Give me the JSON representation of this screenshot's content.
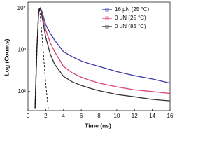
{
  "chart_data": {
    "type": "line",
    "x_label": "Time (ns)",
    "y_label": "Log (Counts)",
    "xlim": [
      0,
      16
    ],
    "xticks": [
      0,
      2,
      4,
      6,
      8,
      10,
      12,
      14,
      16
    ],
    "ylim": [
      35,
      14000
    ],
    "log_y": true,
    "yticks": [
      {
        "value": 100,
        "label": "10²"
      },
      {
        "value": 1000,
        "label": "10³"
      },
      {
        "value": 10000,
        "label": "10⁴"
      }
    ],
    "legend": "top-right",
    "series": [
      {
        "name": "16 µN (25 °C)",
        "color": "#3a3aa8",
        "x": [
          0.8,
          1.0,
          1.2,
          1.4,
          1.6,
          2,
          2.5,
          3,
          4,
          5,
          6,
          7,
          8,
          10,
          12,
          14,
          16
        ],
        "values": [
          40,
          1000,
          8000,
          10000,
          8000,
          4000,
          2500,
          1700,
          900,
          680,
          540,
          460,
          400,
          300,
          240,
          200,
          160
        ]
      },
      {
        "name": "0 µN (25 °C)",
        "color": "#d9476a",
        "x": [
          0.8,
          1.0,
          1.2,
          1.4,
          1.6,
          2,
          2.5,
          3,
          4,
          5,
          6,
          7,
          8,
          10,
          12,
          14,
          16
        ],
        "values": [
          40,
          1000,
          8000,
          10000,
          7000,
          3000,
          1500,
          900,
          400,
          280,
          220,
          185,
          160,
          130,
          110,
          100,
          90
        ]
      },
      {
        "name": "0 µN (85 °C)",
        "color": "#333333",
        "x": [
          0.8,
          1.0,
          1.2,
          1.4,
          1.6,
          2,
          2.5,
          3,
          4,
          5,
          6,
          7,
          8,
          10,
          12,
          14,
          16
        ],
        "values": [
          40,
          1000,
          8000,
          10000,
          6000,
          2000,
          800,
          450,
          230,
          170,
          140,
          120,
          105,
          85,
          75,
          65,
          60
        ]
      },
      {
        "color": "#000000",
        "dashed": true,
        "x": [
          0.8,
          1.0,
          1.2,
          1.3,
          1.6,
          2.0,
          2.3
        ],
        "values": [
          40,
          1000,
          9000,
          10000,
          2000,
          150,
          35
        ]
      }
    ]
  }
}
